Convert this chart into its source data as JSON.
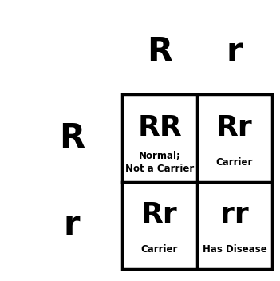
{
  "col_headers": [
    "R",
    "r"
  ],
  "row_headers": [
    "R",
    "r"
  ],
  "cells": [
    {
      "genotype": "RR",
      "description": "Normal;\nNot a Carrier",
      "row": 0,
      "col": 0
    },
    {
      "genotype": "Rr",
      "description": "Carrier",
      "row": 0,
      "col": 1
    },
    {
      "genotype": "Rr",
      "description": "Carrier",
      "row": 1,
      "col": 0
    },
    {
      "genotype": "rr",
      "description": "Has Disease",
      "row": 1,
      "col": 1
    }
  ],
  "background_color": "#ffffff",
  "text_color": "#000000",
  "line_color": "#000000",
  "genotype_fontsize": 26,
  "description_fontsize": 8.5,
  "header_fontsize": 30,
  "line_width": 2.5
}
